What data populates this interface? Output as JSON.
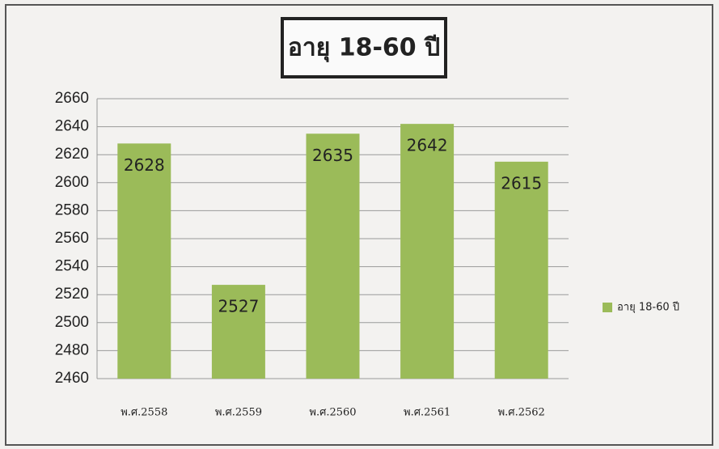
{
  "chart_data": {
    "type": "bar",
    "title": "อายุ 18-60 ปี",
    "categories": [
      "พ.ศ.2558",
      "พ.ศ.2559",
      "พ.ศ.2560",
      "พ.ศ.2561",
      "พ.ศ.2562"
    ],
    "series": [
      {
        "name": "อายุ 18-60 ปี",
        "color": "#9bbb59",
        "values": [
          2628,
          2527,
          2635,
          2642,
          2615
        ]
      }
    ],
    "ylim": [
      2460,
      2660
    ],
    "yticks": [
      2460,
      2480,
      2500,
      2520,
      2540,
      2560,
      2580,
      2600,
      2620,
      2640,
      2660
    ],
    "grid": true,
    "legend": "right"
  }
}
